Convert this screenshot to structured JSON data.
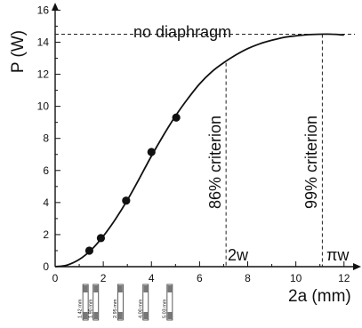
{
  "chart_data": {
    "type": "scatter",
    "xlabel": "2a (mm)",
    "ylabel": "P (W)",
    "xlim": [
      0,
      12.6
    ],
    "ylim": [
      0,
      16.3
    ],
    "x_ticks": [
      0,
      2,
      4,
      6,
      8,
      10,
      12
    ],
    "y_ticks": [
      0,
      2,
      4,
      6,
      8,
      10,
      12,
      14,
      16
    ],
    "grid": false,
    "series": [
      {
        "type": "line",
        "x": [
          0,
          0.5,
          1,
          1.5,
          2,
          2.5,
          3,
          3.5,
          4,
          4.5,
          5,
          5.5,
          6,
          6.5,
          7,
          7.5,
          8,
          8.5,
          9,
          9.5,
          10,
          10.5,
          11,
          11.5,
          12
        ],
        "y": [
          0,
          0.1,
          0.45,
          1.05,
          1.9,
          2.95,
          4.15,
          5.5,
          6.9,
          8.2,
          9.4,
          10.45,
          11.4,
          12.15,
          12.72,
          13.2,
          13.6,
          13.9,
          14.12,
          14.3,
          14.4,
          14.47,
          14.5,
          14.5,
          14.45
        ]
      },
      {
        "type": "scatter",
        "x": [
          1.42,
          1.9,
          2.95,
          4.0,
          5.03
        ],
        "y": [
          1.0,
          1.78,
          4.12,
          7.15,
          9.3
        ]
      }
    ],
    "annotations": {
      "no_diaphragm": "no diaphragm",
      "no_diaphragm_level": 14.5,
      "crit86": "86% criterion",
      "crit86_x": 7.1,
      "crit99": "99% criterion",
      "crit99_x": 11.1,
      "label_2w": "2w",
      "label_piw": "πw"
    },
    "aperture_labels": [
      "1.42 mm",
      "1.90 mm",
      "2.95 mm",
      "4.00 mm",
      "5.03 mm"
    ]
  }
}
